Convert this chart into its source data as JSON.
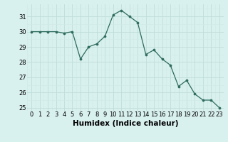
{
  "x": [
    0,
    1,
    2,
    3,
    4,
    5,
    6,
    7,
    8,
    9,
    10,
    11,
    12,
    13,
    14,
    15,
    16,
    17,
    18,
    19,
    20,
    21,
    22,
    23
  ],
  "y": [
    30.0,
    30.0,
    30.0,
    30.0,
    29.9,
    30.0,
    28.2,
    29.0,
    29.2,
    29.7,
    31.1,
    31.4,
    31.0,
    30.6,
    28.5,
    28.8,
    28.2,
    27.8,
    26.4,
    26.8,
    25.9,
    25.5,
    25.5,
    25.0
  ],
  "line_color": "#2e6b5e",
  "marker_color": "#2e6b5e",
  "bg_color": "#d8f0ee",
  "grid_major_color": "#c0ddd9",
  "grid_minor_color": "#d0eae7",
  "xlabel": "Humidex (Indice chaleur)",
  "xlim": [
    -0.5,
    23.5
  ],
  "ylim": [
    24.8,
    31.8
  ],
  "yticks": [
    25,
    26,
    27,
    28,
    29,
    30,
    31
  ],
  "xticks": [
    0,
    1,
    2,
    3,
    4,
    5,
    6,
    7,
    8,
    9,
    10,
    11,
    12,
    13,
    14,
    15,
    16,
    17,
    18,
    19,
    20,
    21,
    22,
    23
  ],
  "tick_fontsize": 6.0,
  "xlabel_fontsize": 7.5
}
